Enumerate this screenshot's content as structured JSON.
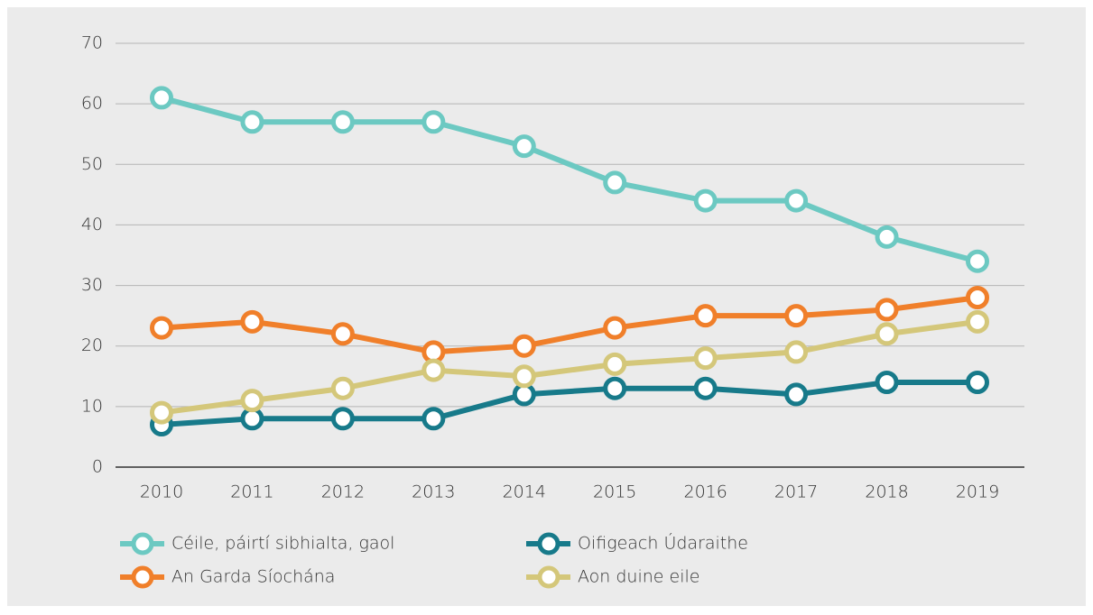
{
  "chart_data": {
    "type": "line",
    "categories": [
      "2010",
      "2011",
      "2012",
      "2013",
      "2014",
      "2015",
      "2016",
      "2017",
      "2018",
      "2019"
    ],
    "series": [
      {
        "name": "Céile, páirtí sibhialta, gaol",
        "color": "#6cc9c2",
        "values": [
          61,
          57,
          57,
          57,
          53,
          47,
          44,
          44,
          38,
          34
        ]
      },
      {
        "name": "Oifigeach Údaraithe",
        "color": "#177a8a",
        "values": [
          7,
          8,
          8,
          8,
          12,
          13,
          13,
          12,
          14,
          14
        ]
      },
      {
        "name": "An Garda Síochána",
        "color": "#f07f2a",
        "values": [
          23,
          24,
          22,
          19,
          20,
          23,
          25,
          25,
          26,
          28
        ]
      },
      {
        "name": "Aon duine eile",
        "color": "#d4c77a",
        "values": [
          9,
          11,
          13,
          16,
          15,
          17,
          18,
          19,
          22,
          24
        ]
      }
    ],
    "ylim": [
      0,
      70
    ],
    "yticks": [
      0,
      10,
      20,
      30,
      40,
      50,
      60,
      70
    ],
    "grid": true,
    "legend": "bottom"
  }
}
